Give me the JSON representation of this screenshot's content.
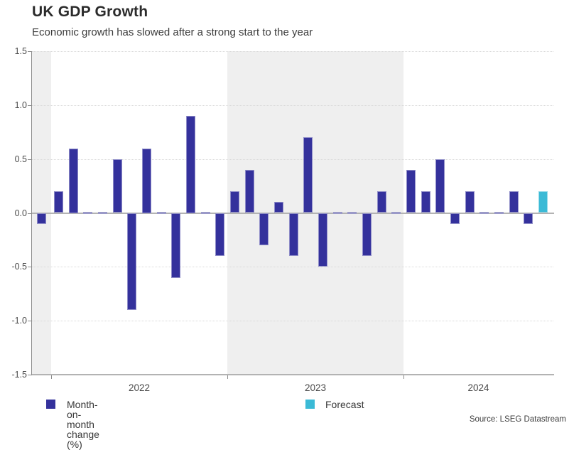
{
  "header": {
    "title": "UK GDP Growth",
    "subtitle": "Economic growth has slowed after a strong start to the year"
  },
  "legend": {
    "actual_label": "Month-on-month change (%)",
    "forecast_label": "Forecast"
  },
  "footer": {
    "source": "Source: LSEG Datastream"
  },
  "colors": {
    "bar": "#34319c",
    "forecast_bar": "#3bbad6",
    "zero_dash": "#9a99c8",
    "band_gray": "#efefef",
    "gridline": "#d9d9d9",
    "axis_line": "#b3b3b3"
  },
  "chart_data": {
    "type": "bar",
    "title": "UK GDP Growth",
    "subtitle": "Economic growth has slowed after a strong start to the year",
    "ylabel": "Month-on-month change (%)",
    "xlabel": "",
    "ylim": [
      -1.5,
      1.5
    ],
    "ytick_labels": [
      "1.5",
      "1.0",
      "0.5",
      "0.0",
      "-0.5",
      "-1.0",
      "-1.5"
    ],
    "ytick_values": [
      1.5,
      1.0,
      0.5,
      0.0,
      -0.5,
      -1.0,
      -1.5
    ],
    "x_year_labels": [
      "2022",
      "2023",
      "2024"
    ],
    "grid": "horizontal-dotted",
    "legend_position": "bottom",
    "band_shading": "alternate years shaded light gray (2021 partial, 2023)",
    "series": [
      {
        "name": "Month-on-month change (%)",
        "color": "#34319c"
      },
      {
        "name": "Forecast",
        "color": "#3bbad6"
      }
    ],
    "points": [
      {
        "month": "2021-12",
        "value": -0.1
      },
      {
        "month": "2022-01",
        "value": 0.2
      },
      {
        "month": "2022-02",
        "value": 0.6
      },
      {
        "month": "2022-03",
        "value": 0.0
      },
      {
        "month": "2022-04",
        "value": 0.0
      },
      {
        "month": "2022-05",
        "value": 0.5
      },
      {
        "month": "2022-06",
        "value": -0.9
      },
      {
        "month": "2022-07",
        "value": 0.6
      },
      {
        "month": "2022-08",
        "value": 0.0
      },
      {
        "month": "2022-09",
        "value": -0.6
      },
      {
        "month": "2022-10",
        "value": 0.9
      },
      {
        "month": "2022-11",
        "value": 0.0
      },
      {
        "month": "2022-12",
        "value": -0.4
      },
      {
        "month": "2023-01",
        "value": 0.2
      },
      {
        "month": "2023-02",
        "value": 0.4
      },
      {
        "month": "2023-03",
        "value": -0.3
      },
      {
        "month": "2023-04",
        "value": 0.1
      },
      {
        "month": "2023-05",
        "value": -0.4
      },
      {
        "month": "2023-06",
        "value": 0.7
      },
      {
        "month": "2023-07",
        "value": -0.5
      },
      {
        "month": "2023-08",
        "value": 0.0
      },
      {
        "month": "2023-09",
        "value": 0.0
      },
      {
        "month": "2023-10",
        "value": -0.4
      },
      {
        "month": "2023-11",
        "value": 0.2
      },
      {
        "month": "2023-12",
        "value": 0.0
      },
      {
        "month": "2024-01",
        "value": 0.4
      },
      {
        "month": "2024-02",
        "value": 0.2
      },
      {
        "month": "2024-03",
        "value": 0.5
      },
      {
        "month": "2024-04",
        "value": -0.1
      },
      {
        "month": "2024-05",
        "value": 0.2
      },
      {
        "month": "2024-06",
        "value": 0.0
      },
      {
        "month": "2024-07",
        "value": 0.0
      },
      {
        "month": "2024-08",
        "value": 0.2
      },
      {
        "month": "2024-09",
        "value": -0.1
      },
      {
        "month": "2024-10",
        "value": 0.2,
        "forecast": true
      }
    ]
  }
}
